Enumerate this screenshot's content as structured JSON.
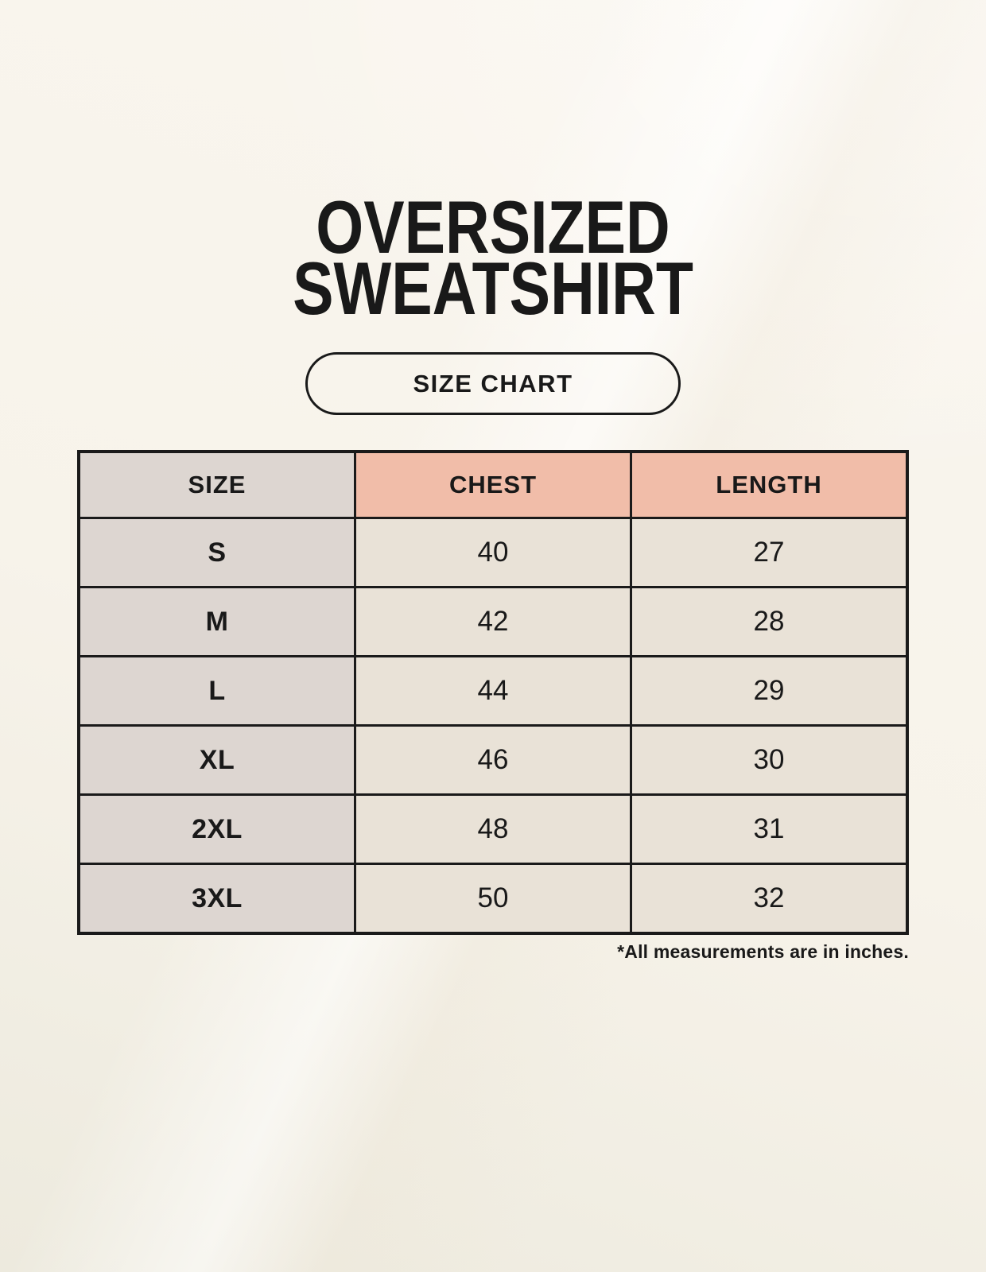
{
  "page": {
    "title": {
      "line1": "OVERSIZED",
      "line2": "SWEATSHIRT"
    },
    "badge_label": "SIZE CHART",
    "footnote": "*All measurements are in inches."
  },
  "chart_data": {
    "type": "table",
    "title": "OVERSIZED SWEATSHIRT SIZE CHART",
    "columns": [
      "SIZE",
      "CHEST",
      "LENGTH"
    ],
    "rows": [
      [
        "S",
        "40",
        "27"
      ],
      [
        "M",
        "42",
        "28"
      ],
      [
        "L",
        "44",
        "29"
      ],
      [
        "XL",
        "46",
        "30"
      ],
      [
        "2XL",
        "48",
        "31"
      ],
      [
        "3XL",
        "50",
        "32"
      ]
    ],
    "units": "inches",
    "layout": {
      "header_fill_columns": [
        "CHEST",
        "LENGTH"
      ],
      "label_column_fill": "SIZE"
    }
  },
  "colors": {
    "background": "#faf6ef",
    "header_accent": "#f1bda9",
    "size_column": "#ddd6d1",
    "value_cell": "#e9e2d7",
    "border": "#1a1a1a",
    "text": "#191919"
  }
}
